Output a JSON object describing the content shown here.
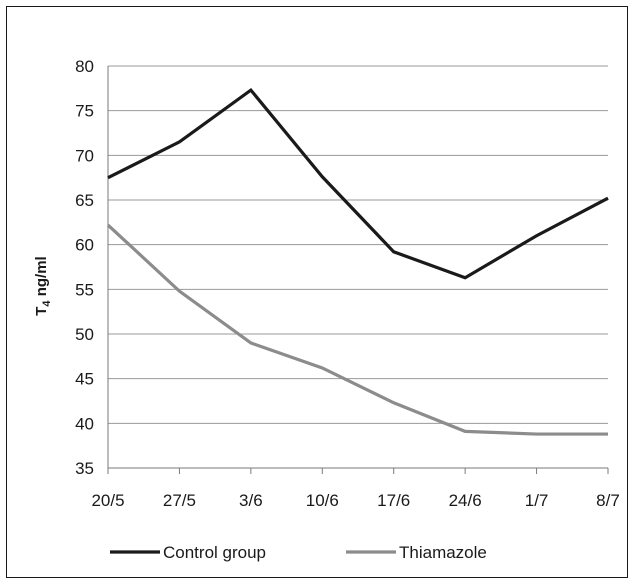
{
  "chart_data": {
    "type": "line",
    "x": [
      "20/5",
      "27/5",
      "3/6",
      "10/6",
      "17/6",
      "24/6",
      "1/7",
      "8/7"
    ],
    "series": [
      {
        "name": "Control group",
        "color": "#1a1a1a",
        "values": [
          67.5,
          71.5,
          77.3,
          67.6,
          59.2,
          56.3,
          61.0,
          65.2
        ]
      },
      {
        "name": "Thiamazole",
        "color": "#8c8c8c",
        "values": [
          62.2,
          54.8,
          49.0,
          46.2,
          42.3,
          39.1,
          38.8,
          38.8
        ]
      }
    ],
    "y_ticks": [
      "35",
      "40",
      "45",
      "50",
      "55",
      "60",
      "65",
      "70",
      "75",
      "80"
    ],
    "ylim": [
      35,
      80
    ],
    "ylabel": {
      "base": "T",
      "sub": "4",
      "rest": " ng/ml"
    },
    "grid": true,
    "legend_position": "bottom"
  }
}
